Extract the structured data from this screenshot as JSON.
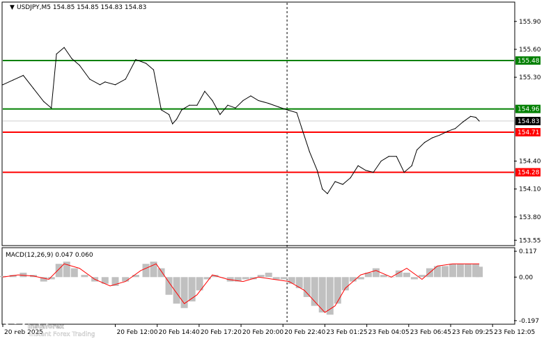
{
  "header": {
    "symbol_line": "USDJPY,M5  154.85 154.85 154.83 154.83"
  },
  "macd_header": "MACD(12,26,9) 0.047 0.060",
  "watermark": {
    "brand": "instaforex",
    "tagline": "Instant Forex Trading"
  },
  "colors": {
    "price_line": "#000000",
    "support": "#ff0000",
    "resistance": "#008000",
    "current_tag": "#000000",
    "histogram": "#c0c0c0",
    "signal": "#ff0000",
    "grid": "#c8c8c8"
  },
  "chart_data": [
    {
      "type": "line",
      "title": "USDJPY,M5  154.85 154.85 154.83 154.83",
      "ylim": [
        153.5,
        156.1
      ],
      "y_ticks": [
        "155.90",
        "155.60",
        "155.30",
        "154.40",
        "154.10",
        "153.80",
        "153.55"
      ],
      "y_tick_values": [
        155.9,
        155.6,
        155.3,
        154.4,
        154.1,
        153.8,
        153.55
      ],
      "x_tick_labels": [
        "20 Feb 2025",
        "20 Feb 12:00",
        "20 Feb 14:40",
        "20 Feb 17:20",
        "20 Feb 20:00",
        "20 Feb 22:40",
        "23 Feb 01:25",
        "23 Feb 04:05",
        "23 Feb 06:45",
        "23 Feb 09:25",
        "23 Feb 12:05"
      ],
      "x_range": [
        0,
        100
      ],
      "x_tick_positions": [
        0,
        22,
        30.2,
        38.4,
        46.6,
        54.8,
        63.0,
        71.2,
        79.4,
        87.6,
        95.8
      ],
      "vertical_marker_x": 55.6,
      "levels": [
        {
          "name": "resistance-high",
          "value": 155.48,
          "label": "155.48",
          "color": "#008000"
        },
        {
          "name": "resistance-low",
          "value": 154.96,
          "label": "154.96",
          "color": "#008000"
        },
        {
          "name": "support-high",
          "value": 154.71,
          "label": "154.71",
          "color": "#ff0000"
        },
        {
          "name": "support-low",
          "value": 154.28,
          "label": "154.28",
          "color": "#ff0000"
        }
      ],
      "current_price": {
        "value": 154.83,
        "label": "154.83"
      },
      "series": [
        {
          "x": [
            0,
            2,
            4,
            6,
            8,
            9.5,
            10.5,
            12,
            13.5,
            15,
            17,
            19,
            20,
            22,
            24,
            26,
            28,
            29.5,
            31,
            32.5,
            33.2,
            34,
            35,
            36.5,
            38,
            39.5,
            41,
            42.5,
            44,
            45.5,
            47,
            48.5,
            50,
            52,
            54,
            55.6,
            57.5,
            58.5,
            60,
            61.5,
            62.5,
            63.5,
            65,
            66.5,
            68,
            69.5,
            71,
            72.5,
            74,
            75.5,
            77,
            78.5,
            80,
            81,
            82.5,
            84,
            85.5,
            87,
            88.5,
            90,
            91.5,
            92.5,
            93.2
          ],
          "values": [
            155.22,
            155.27,
            155.32,
            155.18,
            155.04,
            154.97,
            155.55,
            155.62,
            155.5,
            155.43,
            155.28,
            155.22,
            155.25,
            155.22,
            155.28,
            155.49,
            155.45,
            155.38,
            154.95,
            154.9,
            154.8,
            154.85,
            154.95,
            155.0,
            155.0,
            155.15,
            155.05,
            154.9,
            155.0,
            154.97,
            155.05,
            155.1,
            155.05,
            155.02,
            154.98,
            154.95,
            154.92,
            154.75,
            154.5,
            154.3,
            154.1,
            154.05,
            154.18,
            154.15,
            154.22,
            154.35,
            154.3,
            154.28,
            154.4,
            154.45,
            154.45,
            154.28,
            154.35,
            154.52,
            154.6,
            154.65,
            154.68,
            154.72,
            154.75,
            154.82,
            154.88,
            154.87,
            154.83
          ]
        }
      ]
    },
    {
      "type": "bar",
      "title": "MACD(12,26,9) 0.047 0.060",
      "ylim": [
        -0.21,
        0.13
      ],
      "y_ticks": [
        "0.117",
        "0.00",
        "-0.197"
      ],
      "y_tick_values": [
        0.117,
        0.0,
        -0.197
      ],
      "series": [
        {
          "name": "MACD(12,26,9)",
          "kind": "histogram",
          "x": [
            0,
            2,
            4,
            6,
            8,
            9.5,
            11,
            12.5,
            14,
            16,
            18,
            20,
            22,
            24,
            26,
            28,
            29.5,
            31,
            32.5,
            34,
            35.5,
            37,
            38.5,
            40,
            41.5,
            43,
            44.5,
            46,
            47.5,
            49,
            50.5,
            52,
            53.5,
            55,
            56.5,
            58,
            59.5,
            61,
            62.5,
            64,
            65.5,
            67,
            68.5,
            70,
            71.5,
            73,
            74.5,
            76,
            77.5,
            79,
            80.5,
            82,
            83.5,
            85,
            86.5,
            88,
            89.5,
            91,
            92.5,
            93.2
          ],
          "values": [
            0.005,
            0.01,
            0.02,
            0.01,
            -0.02,
            -0.01,
            0.06,
            0.07,
            0.04,
            0.01,
            -0.02,
            -0.03,
            -0.04,
            -0.02,
            0.01,
            0.06,
            0.07,
            0.04,
            -0.08,
            -0.12,
            -0.14,
            -0.11,
            -0.06,
            -0.01,
            0.01,
            0.0,
            -0.02,
            -0.02,
            -0.01,
            -0.01,
            0.01,
            0.02,
            -0.01,
            -0.01,
            -0.03,
            -0.05,
            -0.09,
            -0.13,
            -0.16,
            -0.17,
            -0.12,
            -0.06,
            -0.02,
            -0.01,
            0.02,
            0.04,
            0.01,
            0.0,
            0.03,
            0.02,
            -0.01,
            0.01,
            0.04,
            0.05,
            0.05,
            0.06,
            0.06,
            0.06,
            0.06,
            0.047
          ]
        },
        {
          "name": "signal",
          "kind": "line",
          "x": [
            0,
            3,
            6,
            9,
            12,
            15,
            18,
            21,
            24,
            27,
            30,
            33,
            35.5,
            38,
            41,
            44,
            47,
            50,
            53,
            56,
            59,
            61,
            63,
            65,
            67,
            70,
            73,
            76,
            79,
            82,
            85,
            88,
            91,
            93.2
          ],
          "values": [
            0.0,
            0.01,
            0.005,
            -0.01,
            0.06,
            0.04,
            -0.01,
            -0.04,
            -0.02,
            0.03,
            0.06,
            -0.04,
            -0.12,
            -0.08,
            0.01,
            -0.01,
            -0.02,
            0.0,
            -0.01,
            -0.02,
            -0.06,
            -0.11,
            -0.16,
            -0.13,
            -0.05,
            0.01,
            0.03,
            0.0,
            0.04,
            -0.01,
            0.05,
            0.06,
            0.06,
            0.06
          ]
        }
      ]
    }
  ]
}
